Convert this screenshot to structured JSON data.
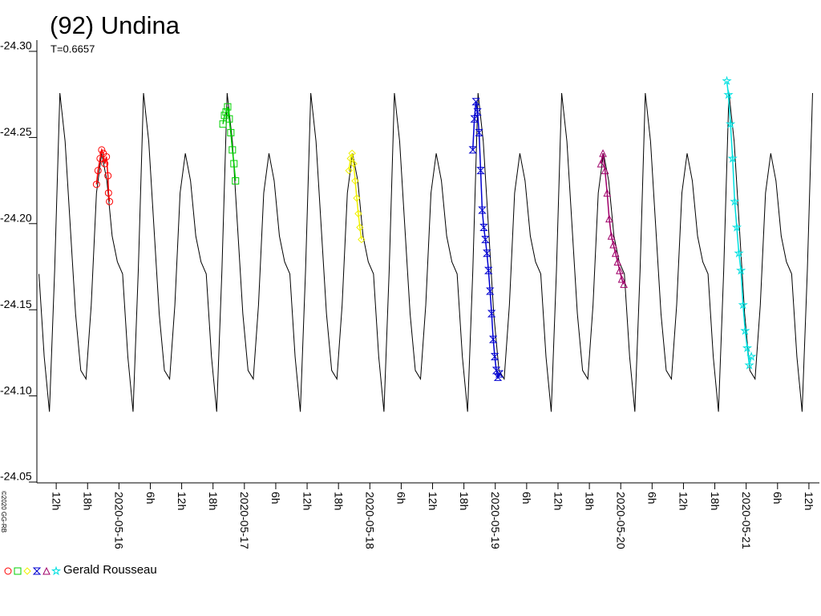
{
  "chart_data": {
    "type": "scatter",
    "title": "(92) Undina",
    "subtitle": "T=0.6657",
    "credit": "©2020 GG-RB",
    "legend": "Gerald Rousseau",
    "xlim": [
      -15.7,
      133.7
    ],
    "ylim": [
      -24.05,
      -24.3
    ],
    "yticks": [
      {
        "value": -24.3,
        "label": "-24.30"
      },
      {
        "value": -24.25,
        "label": "-24.25"
      },
      {
        "value": -24.2,
        "label": "-24.20"
      },
      {
        "value": -24.15,
        "label": "-24.15"
      },
      {
        "value": -24.1,
        "label": "-24.10"
      },
      {
        "value": -24.05,
        "label": "-24.05"
      }
    ],
    "xticks": [
      {
        "value": -12,
        "label": "12h"
      },
      {
        "value": -6,
        "label": "18h"
      },
      {
        "value": 0,
        "label": "2020-05-16"
      },
      {
        "value": 6,
        "label": "6h"
      },
      {
        "value": 12,
        "label": "12h"
      },
      {
        "value": 18,
        "label": "18h"
      },
      {
        "value": 24,
        "label": "2020-05-17"
      },
      {
        "value": 30,
        "label": "6h"
      },
      {
        "value": 36,
        "label": "12h"
      },
      {
        "value": 42,
        "label": "18h"
      },
      {
        "value": 48,
        "label": "2020-05-18"
      },
      {
        "value": 54,
        "label": "6h"
      },
      {
        "value": 60,
        "label": "12h"
      },
      {
        "value": 66,
        "label": "18h"
      },
      {
        "value": 72,
        "label": "2020-05-19"
      },
      {
        "value": 78,
        "label": "6h"
      },
      {
        "value": 84,
        "label": "12h"
      },
      {
        "value": 90,
        "label": "18h"
      },
      {
        "value": 96,
        "label": "2020-05-20"
      },
      {
        "value": 102,
        "label": "6h"
      },
      {
        "value": 108,
        "label": "12h"
      },
      {
        "value": 114,
        "label": "18h"
      },
      {
        "value": 120,
        "label": "2020-05-21"
      },
      {
        "value": 126,
        "label": "6h"
      },
      {
        "value": 132,
        "label": "12h"
      }
    ],
    "model": {
      "color": "#000000",
      "x": [
        -15.3,
        -14.3,
        -13.3,
        -12.3,
        -11.3,
        -10.3,
        -9.3,
        -8.3,
        -7.3,
        -6.3,
        -5.3,
        -4.3,
        -3.3,
        -2.3,
        -1.3,
        -0.3,
        0.7,
        1.7,
        2.7,
        3.7,
        4.7,
        5.7,
        6.7,
        7.7,
        8.7,
        9.7,
        10.7,
        11.7,
        12.7,
        13.7,
        14.7,
        15.7,
        16.7,
        17.7,
        18.7,
        19.7,
        20.7,
        21.7,
        22.7,
        23.7,
        24.7,
        25.7,
        26.7,
        27.7,
        28.7,
        29.7,
        30.7,
        31.7,
        32.7,
        33.7,
        34.7,
        35.7,
        36.7,
        37.7,
        38.7,
        39.7,
        40.7,
        41.7,
        42.7,
        43.7,
        44.7,
        45.7,
        46.7,
        47.7,
        48.7,
        49.7,
        50.7,
        51.7,
        52.7,
        53.7,
        54.7,
        55.7,
        56.7,
        57.7,
        58.7,
        59.7,
        60.7,
        61.7,
        62.7,
        63.7,
        64.7,
        65.7,
        66.7,
        67.7,
        68.7,
        69.7,
        70.7,
        71.7,
        72.7,
        73.7,
        74.7,
        75.7,
        76.7,
        77.7,
        78.7,
        79.7,
        80.7,
        81.7,
        82.7,
        83.7,
        84.7,
        85.7,
        86.7,
        87.7,
        88.7,
        89.7,
        90.7,
        91.7,
        92.7,
        93.7,
        94.7,
        95.7,
        96.7,
        97.7,
        98.7,
        99.7,
        100.7,
        101.7,
        102.7,
        103.7,
        104.7,
        105.7,
        106.7,
        107.7,
        108.7,
        109.7,
        110.7,
        111.7,
        112.7,
        113.7,
        114.7,
        115.7,
        116.7,
        117.7,
        118.7,
        119.7,
        120.7,
        121.7,
        122.7,
        123.7,
        124.7,
        125.7,
        126.7,
        127.7,
        128.7,
        129.7,
        130.7,
        131.7,
        132.7
      ],
      "values": [
        -24.168,
        -24.12,
        -24.088,
        -24.17,
        -24.273,
        -24.245,
        -24.195,
        -24.145,
        -24.112,
        -24.107,
        -24.15,
        -24.215,
        -24.238,
        -24.222,
        -24.19,
        -24.175,
        -24.168,
        -24.12,
        -24.088,
        -24.17,
        -24.273,
        -24.245,
        -24.195,
        -24.145,
        -24.112,
        -24.107,
        -24.15,
        -24.215,
        -24.238,
        -24.222,
        -24.19,
        -24.175,
        -24.168,
        -24.12,
        -24.088,
        -24.17,
        -24.273,
        -24.245,
        -24.195,
        -24.145,
        -24.112,
        -24.107,
        -24.15,
        -24.215,
        -24.238,
        -24.222,
        -24.19,
        -24.175,
        -24.168,
        -24.12,
        -24.088,
        -24.17,
        -24.273,
        -24.245,
        -24.195,
        -24.145,
        -24.112,
        -24.107,
        -24.15,
        -24.215,
        -24.238,
        -24.222,
        -24.19,
        -24.175,
        -24.168,
        -24.12,
        -24.088,
        -24.17,
        -24.273,
        -24.245,
        -24.195,
        -24.145,
        -24.112,
        -24.107,
        -24.15,
        -24.215,
        -24.238,
        -24.222,
        -24.19,
        -24.175,
        -24.168,
        -24.12,
        -24.088,
        -24.17,
        -24.273,
        -24.245,
        -24.195,
        -24.145,
        -24.112,
        -24.107,
        -24.15,
        -24.215,
        -24.238,
        -24.222,
        -24.19,
        -24.175,
        -24.168,
        -24.12,
        -24.088,
        -24.17,
        -24.273,
        -24.245,
        -24.195,
        -24.145,
        -24.112,
        -24.107,
        -24.15,
        -24.215,
        -24.238,
        -24.222,
        -24.19,
        -24.175,
        -24.168,
        -24.12,
        -24.088,
        -24.17,
        -24.273,
        -24.245,
        -24.195,
        -24.145,
        -24.112,
        -24.107,
        -24.15,
        -24.215,
        -24.238,
        -24.222,
        -24.19,
        -24.175,
        -24.168,
        -24.12,
        -24.088,
        -24.17,
        -24.273,
        -24.245,
        -24.195,
        -24.145,
        -24.112,
        -24.107,
        -24.15,
        -24.215,
        -24.238,
        -24.222,
        -24.19,
        -24.175,
        -24.168,
        -24.12,
        -24.088,
        -24.17,
        -24.273
      ]
    },
    "series": [
      {
        "color": "#ff0000",
        "marker": "circle",
        "x": [
          -4.3,
          -4.0,
          -3.6,
          -3.3,
          -3.0,
          -2.7,
          -2.4,
          -2.1,
          -2.0,
          -1.8
        ],
        "values": [
          -24.22,
          -24.228,
          -24.235,
          -24.24,
          -24.238,
          -24.232,
          -24.236,
          -24.225,
          -24.215,
          -24.21
        ]
      },
      {
        "color": "#00d000",
        "marker": "square",
        "x": [
          19.9,
          20.2,
          20.5,
          20.8,
          21.1,
          21.4,
          21.7,
          22.0,
          22.3
        ],
        "values": [
          -24.255,
          -24.26,
          -24.262,
          -24.265,
          -24.258,
          -24.25,
          -24.24,
          -24.232,
          -24.222
        ]
      },
      {
        "color": "#f0f000",
        "marker": "diamond",
        "x": [
          44.0,
          44.3,
          44.6,
          44.9,
          45.2,
          45.5,
          45.8,
          46.1,
          46.4
        ],
        "values": [
          -24.228,
          -24.235,
          -24.238,
          -24.232,
          -24.222,
          -24.212,
          -24.203,
          -24.195,
          -24.188
        ]
      },
      {
        "color": "#0000d0",
        "marker": "hourglass",
        "x": [
          67.7,
          68.0,
          68.3,
          68.6,
          68.9,
          69.2,
          69.5,
          69.8,
          70.1,
          70.4,
          70.7,
          71.0,
          71.3,
          71.6,
          71.9,
          72.2,
          72.5,
          72.8
        ],
        "values": [
          -24.24,
          -24.258,
          -24.268,
          -24.262,
          -24.25,
          -24.228,
          -24.205,
          -24.195,
          -24.188,
          -24.18,
          -24.17,
          -24.158,
          -24.145,
          -24.13,
          -24.12,
          -24.112,
          -24.108,
          -24.11
        ]
      },
      {
        "color": "#a0006a",
        "marker": "triangle",
        "x": [
          92.2,
          92.6,
          93.0,
          93.4,
          93.8,
          94.2,
          94.6,
          95.0,
          95.4,
          95.8,
          96.2,
          96.6
        ],
        "values": [
          -24.232,
          -24.238,
          -24.228,
          -24.215,
          -24.2,
          -24.19,
          -24.185,
          -24.18,
          -24.175,
          -24.17,
          -24.165,
          -24.162
        ]
      },
      {
        "color": "#00e0e0",
        "marker": "star",
        "x": [
          116.3,
          116.6,
          117.0,
          117.4,
          117.8,
          118.2,
          118.6,
          119.0,
          119.4,
          119.8,
          120.2,
          120.6,
          121.0
        ],
        "values": [
          -24.28,
          -24.272,
          -24.255,
          -24.235,
          -24.21,
          -24.195,
          -24.18,
          -24.17,
          -24.15,
          -24.135,
          -24.125,
          -24.115,
          -24.12
        ]
      }
    ]
  }
}
